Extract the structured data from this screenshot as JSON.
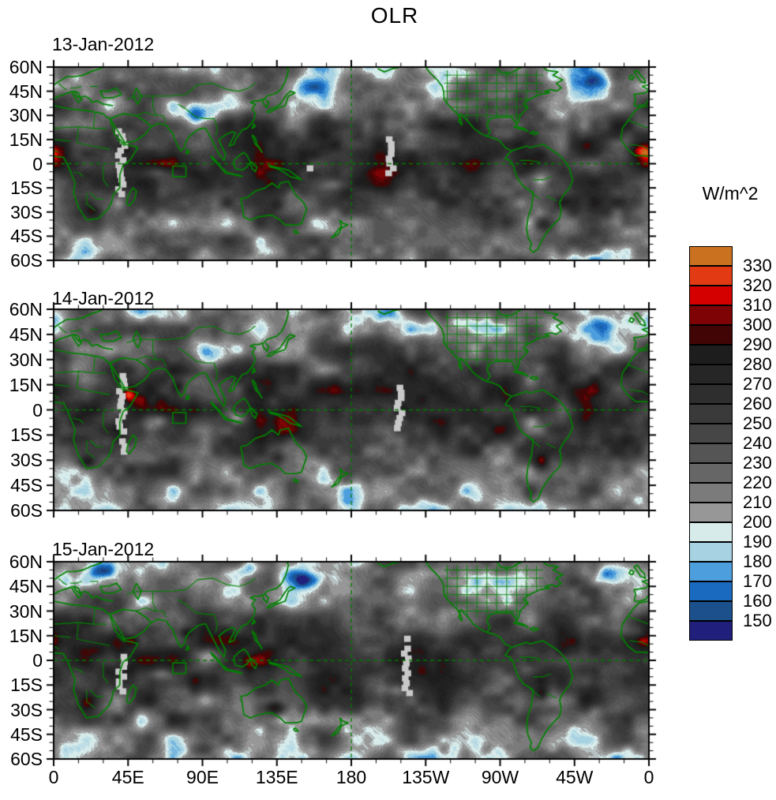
{
  "chart_data": {
    "type": "heatmap",
    "title": "OLR",
    "units_label": "W/m^2",
    "panels": [
      {
        "date": "13-Jan-2012"
      },
      {
        "date": "14-Jan-2012"
      },
      {
        "date": "15-Jan-2012"
      }
    ],
    "x_axis": {
      "tick_labels": [
        "0",
        "45E",
        "90E",
        "135E",
        "180",
        "135W",
        "90W",
        "45W",
        "0"
      ],
      "range_deg": [
        0,
        360
      ],
      "major_tick_deg": 45,
      "minor_tick_deg": 15
    },
    "y_axis": {
      "tick_labels": [
        "60N",
        "45N",
        "30N",
        "15N",
        "0",
        "15S",
        "30S",
        "45S",
        "60S"
      ],
      "range_deg": [
        60,
        -60
      ],
      "major_tick_deg": 15,
      "minor_tick_deg": 5
    },
    "colorbar": {
      "label": "W/m^2",
      "tick_labels": [
        "330",
        "320",
        "310",
        "300",
        "290",
        "280",
        "270",
        "260",
        "250",
        "240",
        "230",
        "220",
        "210",
        "200",
        "190",
        "180",
        "170",
        "160",
        "150"
      ],
      "colors_top_to_bottom": [
        "#c9711f",
        "#e23b14",
        "#d40000",
        "#7e0305",
        "#420505",
        "#1d1d1d",
        "#262626",
        "#2e2e2e",
        "#3a3a3a",
        "#464646",
        "#555555",
        "#666666",
        "#7b7b7b",
        "#979797",
        "#d8ebeb",
        "#a6d2e2",
        "#4d9edd",
        "#1a6bc0",
        "#1b508d",
        "#201f7c"
      ],
      "value_step": 10,
      "value_min_label": 150,
      "value_max_label": 330
    },
    "overlay": {
      "coastline_color": "#008200",
      "reference_line_color": "#007a00",
      "missing_data_color": "#c9c9c9",
      "roi_box_color": "#008200"
    },
    "grid": false,
    "legend_position": "right"
  }
}
